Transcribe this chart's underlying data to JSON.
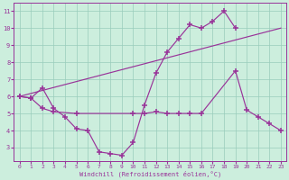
{
  "background_color": "#cceedd",
  "grid_color": "#99ccbb",
  "line_color": "#993399",
  "xlabel": "Windchill (Refroidissement éolien,°C)",
  "xlim": [
    -0.5,
    23.5
  ],
  "ylim": [
    2.2,
    11.5
  ],
  "xticks": [
    0,
    1,
    2,
    3,
    4,
    5,
    6,
    7,
    8,
    9,
    10,
    11,
    12,
    13,
    14,
    15,
    16,
    17,
    18,
    19,
    20,
    21,
    22,
    23
  ],
  "yticks": [
    3,
    4,
    5,
    6,
    7,
    8,
    9,
    10,
    11
  ],
  "series": [
    {
      "x": [
        0,
        1,
        2,
        3,
        4,
        5,
        6,
        7,
        8,
        9,
        10,
        11,
        12,
        13,
        14,
        15,
        16,
        17,
        18,
        19
      ],
      "y": [
        6.0,
        5.9,
        6.5,
        5.3,
        4.8,
        4.1,
        4.0,
        2.75,
        2.65,
        2.55,
        3.3,
        5.5,
        7.35,
        8.6,
        9.4,
        10.2,
        10.0,
        10.4,
        11.0,
        10.0
      ],
      "marker": true
    },
    {
      "x": [
        0,
        23
      ],
      "y": [
        6.0,
        10.0
      ],
      "marker": false
    },
    {
      "x": [
        0,
        1,
        2,
        3,
        5,
        10,
        11,
        12,
        13,
        14,
        15,
        16,
        19,
        20,
        21,
        22,
        23
      ],
      "y": [
        6.0,
        5.9,
        5.3,
        5.1,
        5.0,
        5.0,
        5.0,
        5.1,
        5.0,
        5.0,
        5.0,
        5.0,
        7.5,
        5.2,
        4.8,
        4.4,
        4.0
      ],
      "marker": true
    }
  ]
}
